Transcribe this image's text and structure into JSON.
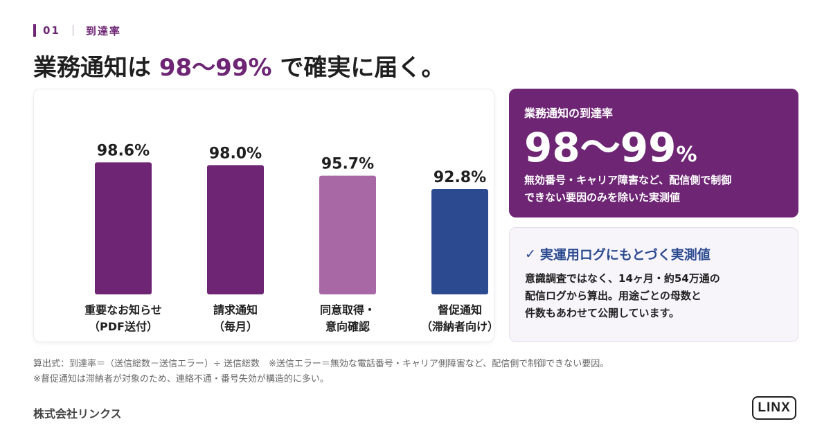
{
  "section": {
    "number": "01",
    "label": "到達率"
  },
  "headline": {
    "prefix": "業務通知は ",
    "highlight": "98〜99%",
    "suffix": " で確実に届く。"
  },
  "chart_data": {
    "type": "bar",
    "categories": [
      [
        "重要なお知らせ",
        "（PDF送付）"
      ],
      [
        "請求通知",
        "（毎月）"
      ],
      [
        "同意取得・",
        "意向確認"
      ],
      [
        "督促通知",
        "（滞納者向け）"
      ]
    ],
    "values": [
      98.6,
      98.0,
      95.7,
      92.8
    ],
    "value_labels": [
      "98.6%",
      "98.0%",
      "95.7%",
      "92.8%"
    ],
    "colors": [
      "#6d2574",
      "#6d2574",
      "#a868a6",
      "#2b4a8f"
    ],
    "ylim": [
      0,
      100
    ],
    "grid": false
  },
  "panel_top": {
    "label": "業務通知の到達率",
    "big_number": "98〜99",
    "big_unit": "%",
    "desc_line1": "無効番号・キャリア障害など、配信側で制御",
    "desc_line2": "できない要因のみを除いた実測値"
  },
  "panel_bottom": {
    "check": "✓",
    "title": "実運用ログにもとづく実測値",
    "line1": "意識調査ではなく、14ヶ月・約54万通の",
    "line2": "配信ログから算出。用途ごとの母数と",
    "line3": "件数もあわせて公開しています。"
  },
  "footnote": {
    "line1": "算出式：到達率＝（送信総数－送信エラー）÷ 送信総数　※送信エラー＝無効な電話番号・キャリア側障害など、配信側で制御できない要因。",
    "line2": "※督促通知は滞納者が対象のため、連絡不通・番号失効が構造的に多い。"
  },
  "company": "株式会社リンクス",
  "logo": "LINX",
  "colors": {
    "accent": "#6d2574",
    "accent_light": "#a868a6",
    "navy": "#2b4a8f"
  }
}
